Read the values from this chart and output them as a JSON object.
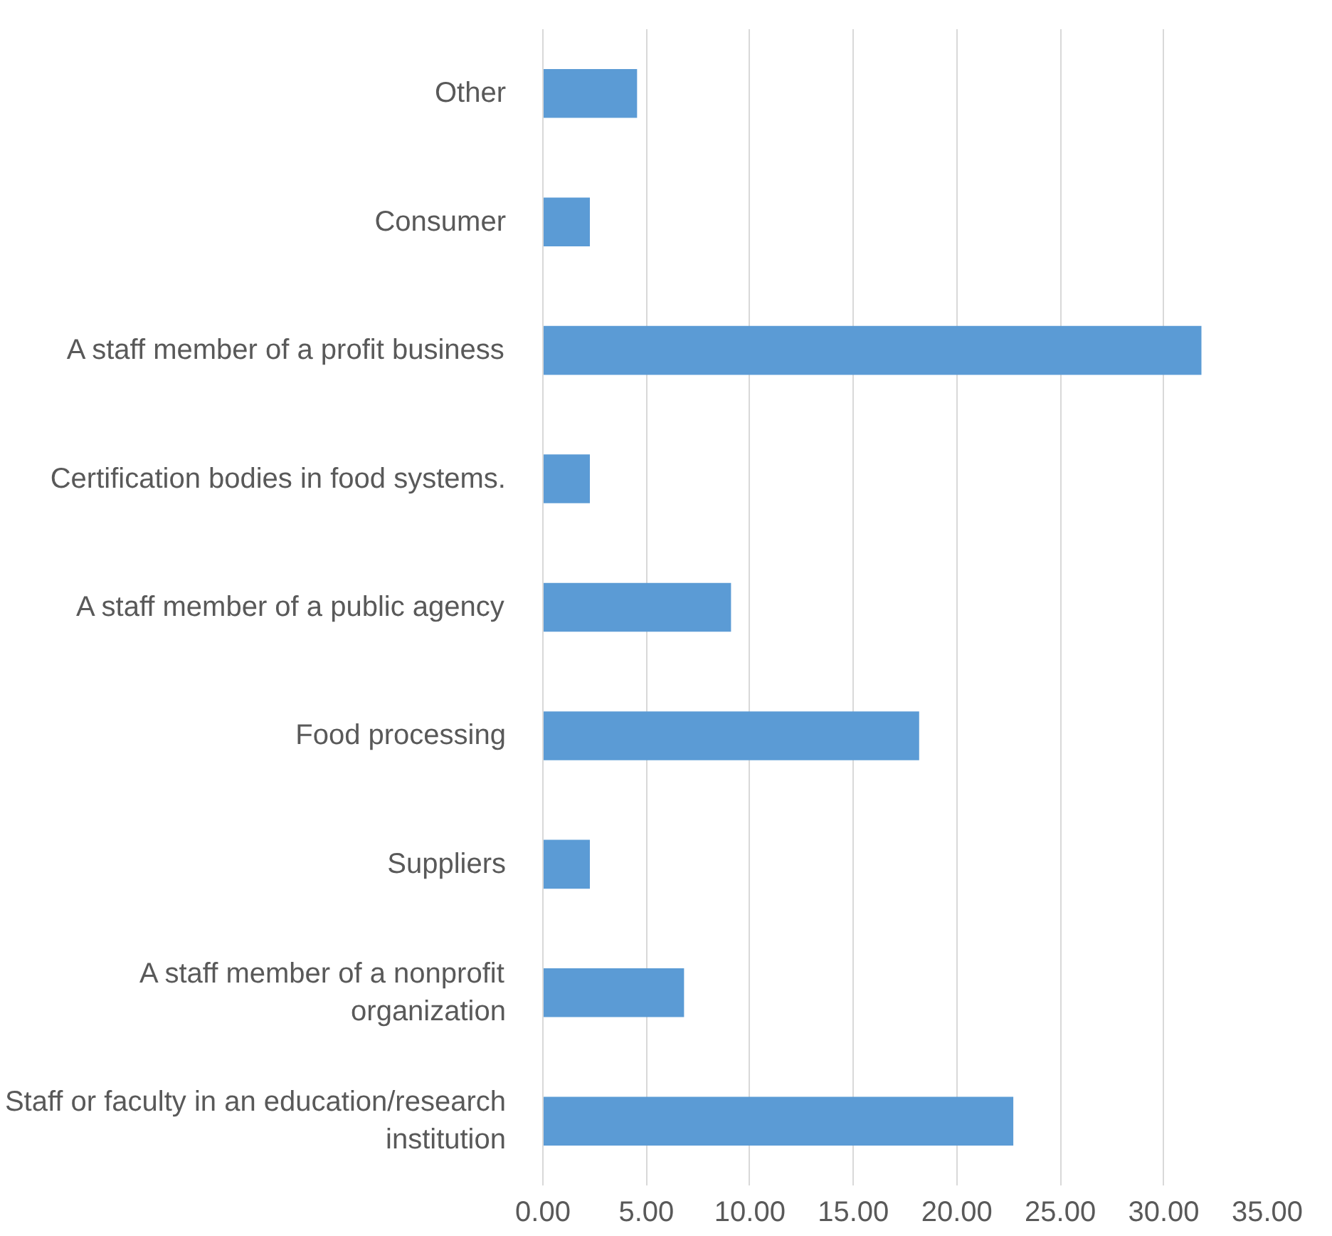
{
  "chart_data": {
    "type": "bar",
    "orientation": "horizontal",
    "categories": [
      "Other",
      "Consumer",
      "A staff member of a profit business",
      "Certification bodies in food systems.",
      "A staff member of a public agency",
      "Food processing",
      "Suppliers",
      "A staff member of a nonprofit organization",
      "Staff or faculty in an education/research institution"
    ],
    "values": [
      4.55,
      2.27,
      31.82,
      2.27,
      9.09,
      18.18,
      2.27,
      6.82,
      22.73
    ],
    "color": "#5b9bd5",
    "xlim": [
      0,
      35
    ],
    "xticks": [
      {
        "value": 0,
        "label": "0.00"
      },
      {
        "value": 5,
        "label": "5.00"
      },
      {
        "value": 10,
        "label": "10.00"
      },
      {
        "value": 15,
        "label": "15.00"
      },
      {
        "value": 20,
        "label": "20.00"
      },
      {
        "value": 25,
        "label": "25.00"
      },
      {
        "value": 30,
        "label": "30.00"
      },
      {
        "value": 35,
        "label": "35.00"
      }
    ],
    "grid": "x"
  }
}
